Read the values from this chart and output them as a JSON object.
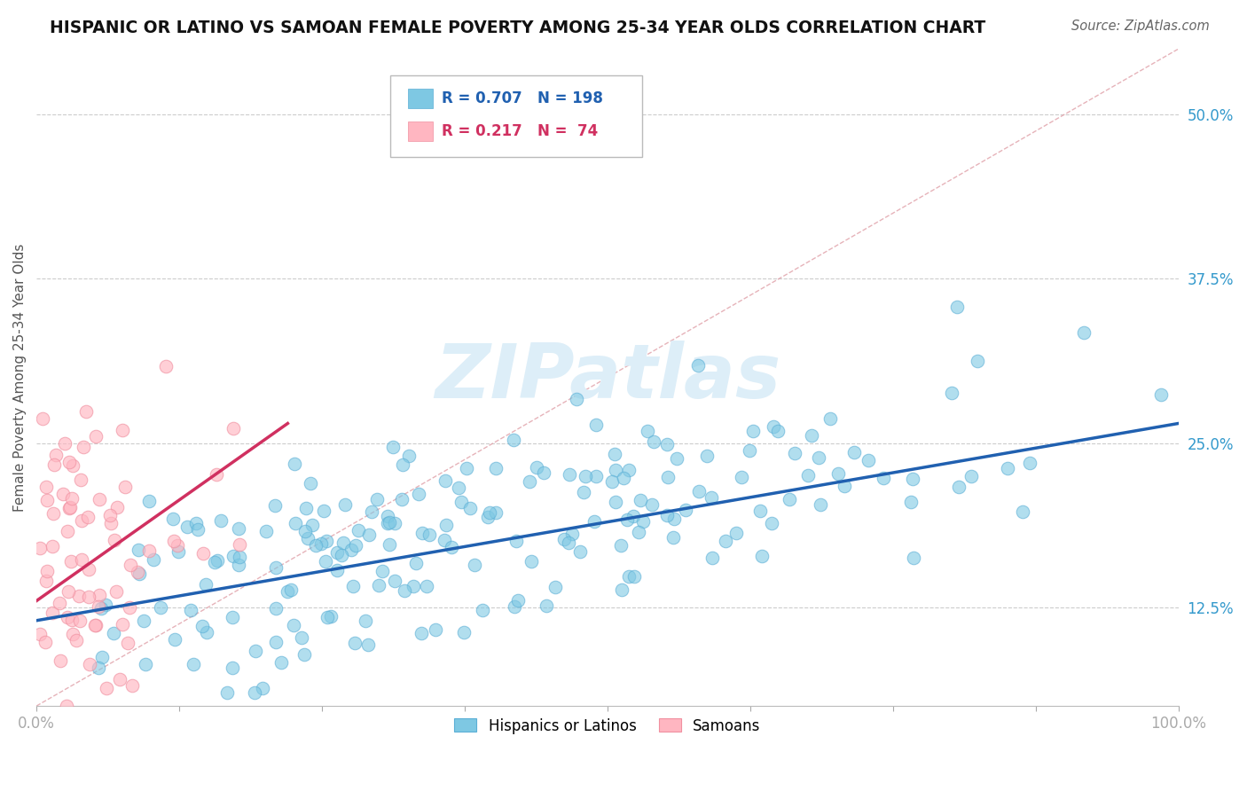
{
  "title": "HISPANIC OR LATINO VS SAMOAN FEMALE POVERTY AMONG 25-34 YEAR OLDS CORRELATION CHART",
  "source": "Source: ZipAtlas.com",
  "ylabel": "Female Poverty Among 25-34 Year Olds",
  "yticks": [
    0.125,
    0.25,
    0.375,
    0.5
  ],
  "ytick_labels": [
    "12.5%",
    "25.0%",
    "37.5%",
    "50.0%"
  ],
  "xlim": [
    0.0,
    1.0
  ],
  "ylim": [
    0.05,
    0.55
  ],
  "blue_color": "#7ec8e3",
  "pink_color": "#ffb6c1",
  "blue_edge_color": "#5bafd6",
  "pink_edge_color": "#f090a0",
  "blue_line_color": "#2060b0",
  "pink_line_color": "#d03060",
  "diag_line_color": "#e0a0a8",
  "watermark": "ZIPatlas",
  "watermark_color": "#ddeef8",
  "blue_scatter_seed": 42,
  "pink_scatter_seed": 99,
  "blue_trend_x": [
    0.0,
    1.0
  ],
  "blue_trend_y": [
    0.115,
    0.265
  ],
  "pink_trend_x": [
    0.0,
    0.22
  ],
  "pink_trend_y": [
    0.13,
    0.265
  ],
  "diag_trend_x": [
    0.0,
    1.0
  ],
  "diag_trend_y": [
    0.05,
    0.55
  ],
  "N_blue": 198,
  "N_pink": 74,
  "R_blue": 0.707,
  "R_pink": 0.217,
  "legend_text_color_blue": "#2060b0",
  "legend_text_color_pink": "#d03060"
}
